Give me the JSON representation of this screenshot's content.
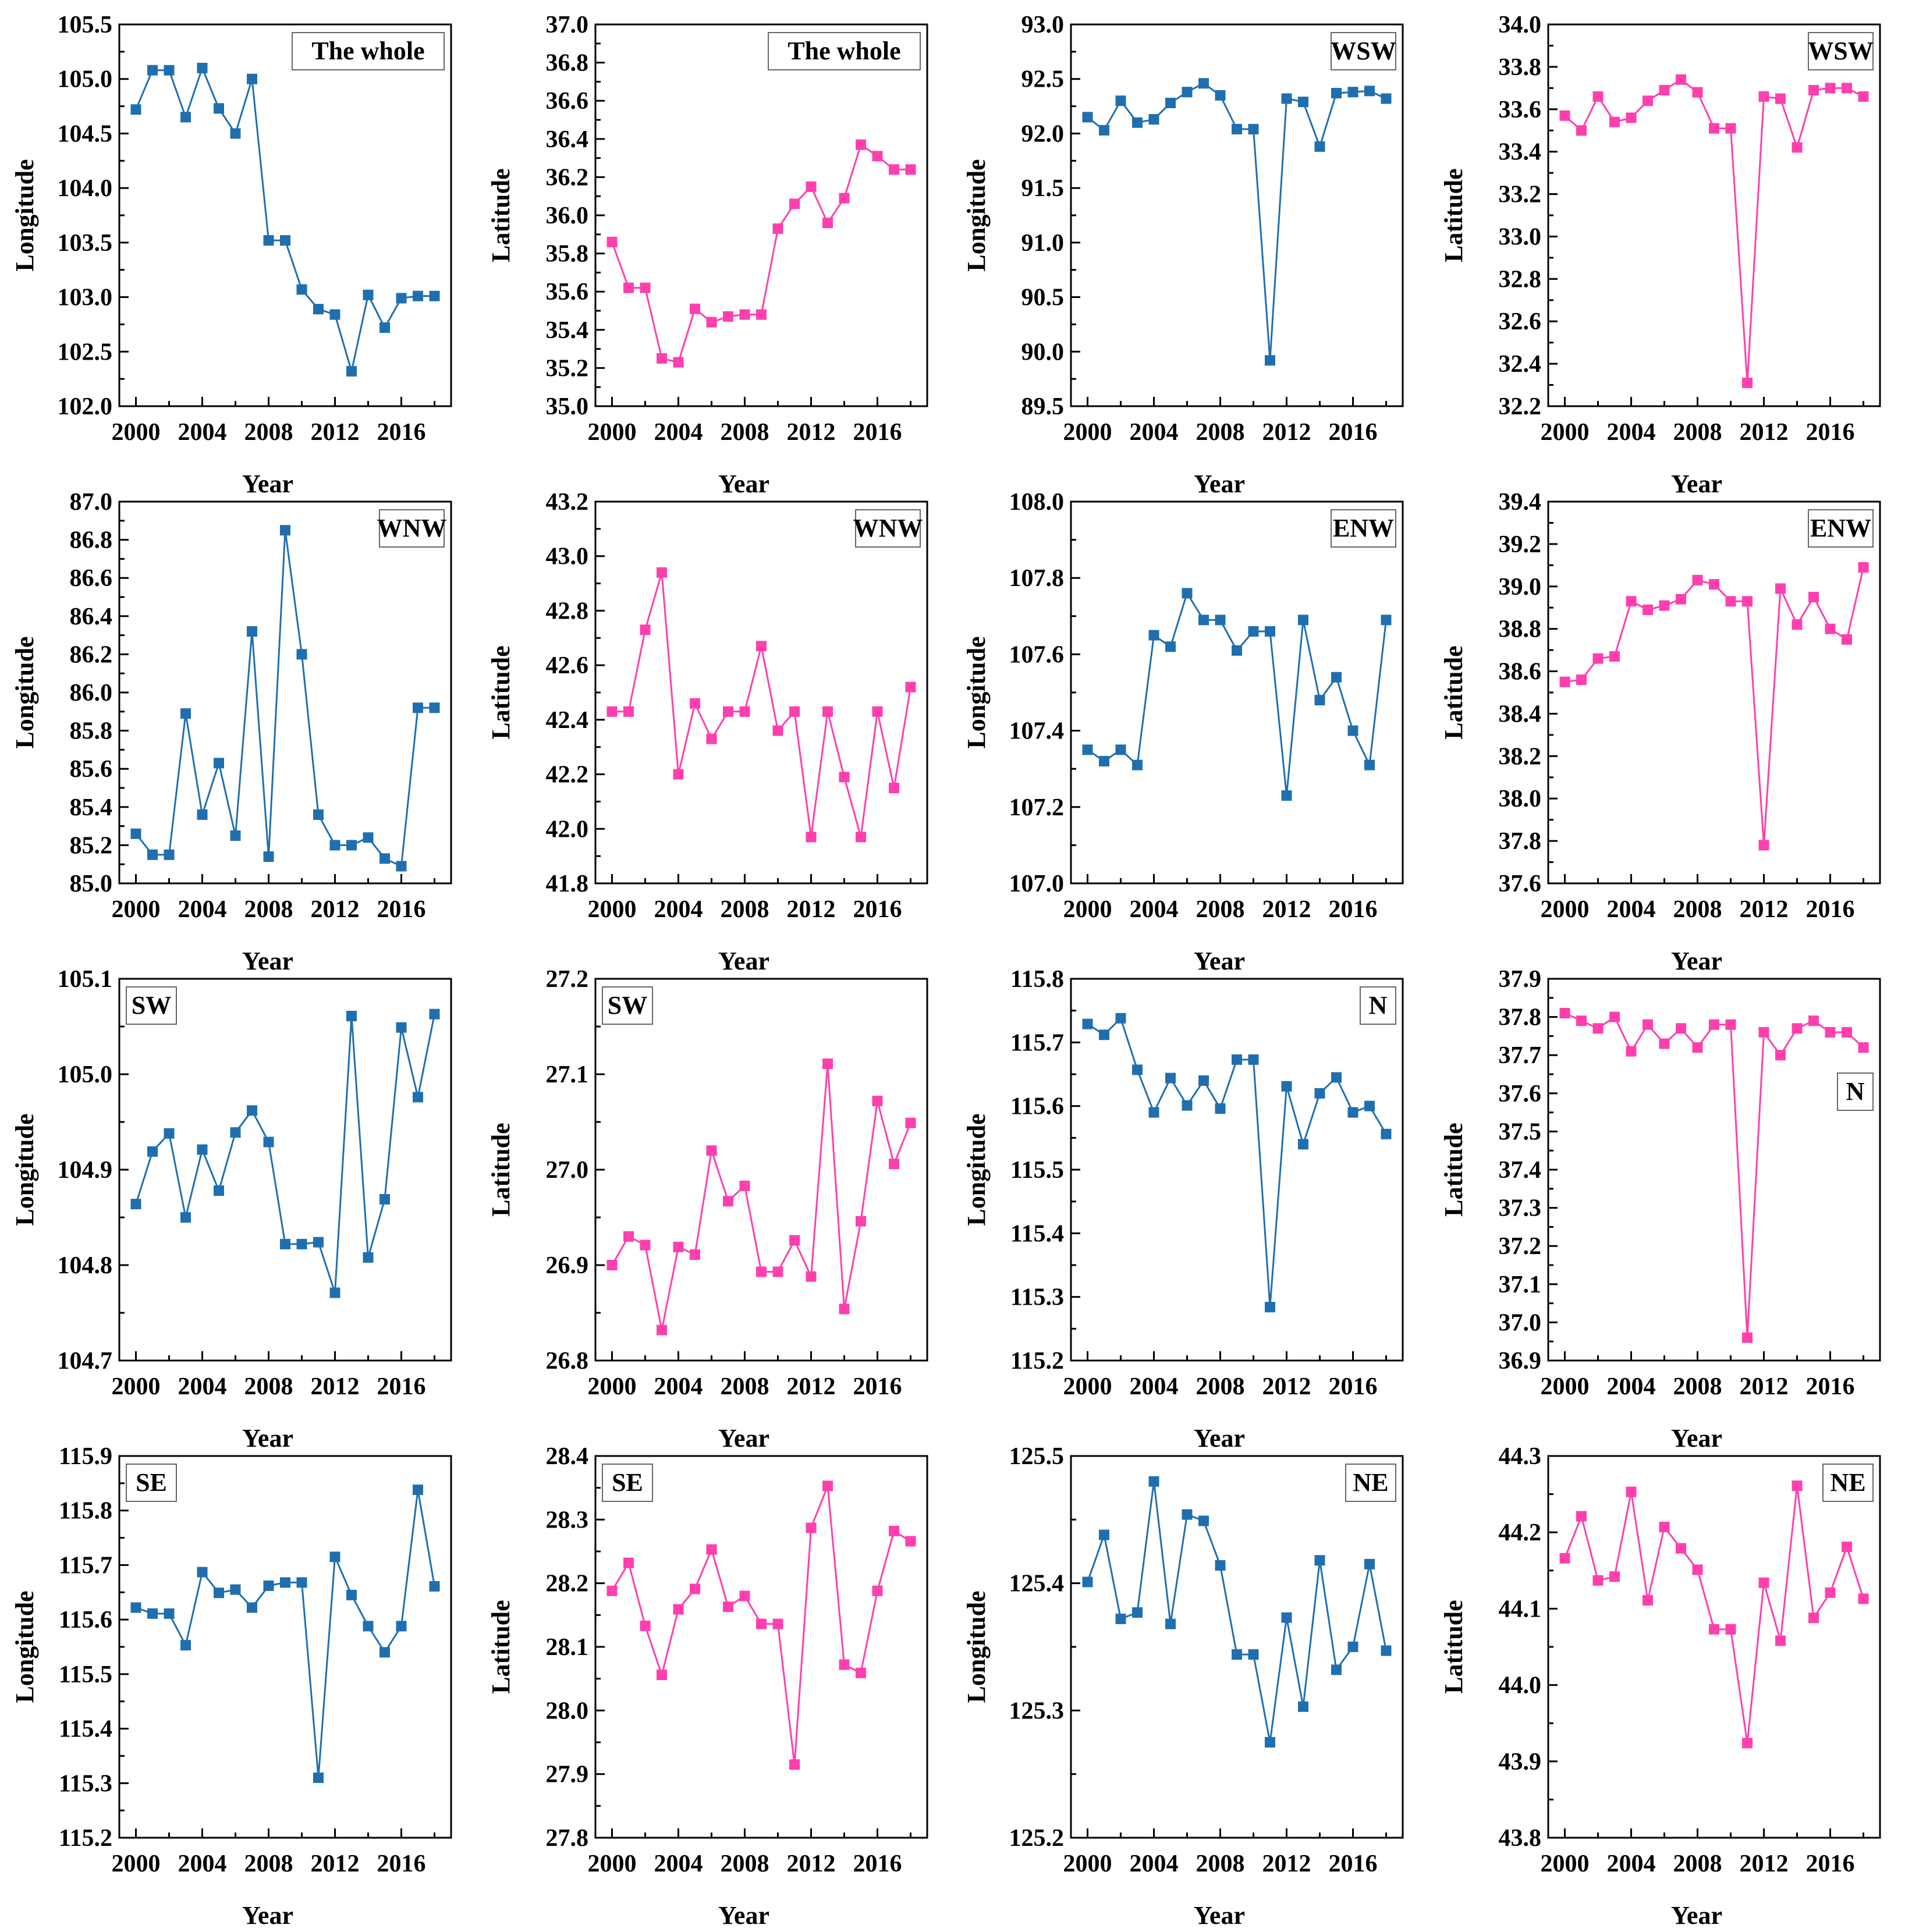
{
  "colors": {
    "longitude": "#1f6fb0",
    "latitude": "#ff3fae"
  },
  "years": [
    2000,
    2001,
    2002,
    2003,
    2004,
    2005,
    2006,
    2007,
    2008,
    2009,
    2010,
    2011,
    2012,
    2013,
    2014,
    2015,
    2016,
    2017,
    2018
  ],
  "chart_data": [
    {
      "type": "line",
      "title": "The whole",
      "region": "The whole",
      "xlabel": "Year",
      "ylabel": "Longitude",
      "color": "longitude",
      "xlim": [
        1999,
        2019
      ],
      "x_ticks": [
        2000,
        2004,
        2008,
        2012,
        2016
      ],
      "x_tick_labels": [
        "2000",
        "2004",
        "2008",
        "2012",
        "2016"
      ],
      "ylim": [
        102.0,
        105.5
      ],
      "y_ticks": [
        102.0,
        102.5,
        103.0,
        103.5,
        104.0,
        104.5,
        105.0,
        105.5
      ],
      "y_tick_labels": [
        "102.0",
        "102.5",
        "103.0",
        "103.5",
        "104.0",
        "104.5",
        "105.0",
        "105.5"
      ],
      "values": [
        104.72,
        105.08,
        105.08,
        104.65,
        105.1,
        104.73,
        104.5,
        105.0,
        103.52,
        103.52,
        103.07,
        102.89,
        102.84,
        102.32,
        103.02,
        102.72,
        102.99,
        103.01,
        103.01
      ],
      "legend_position": "top-right"
    },
    {
      "type": "line",
      "title": "The whole",
      "region": "The whole",
      "xlabel": "Year",
      "ylabel": "Latitude",
      "color": "latitude",
      "xlim": [
        1999,
        2019
      ],
      "x_ticks": [
        2000,
        2004,
        2008,
        2012,
        2016
      ],
      "x_tick_labels": [
        "2000",
        "2004",
        "2008",
        "2012",
        "2016"
      ],
      "ylim": [
        35.0,
        37.0
      ],
      "y_ticks": [
        35.0,
        35.2,
        35.4,
        35.6,
        35.8,
        36.0,
        36.2,
        36.4,
        36.6,
        36.8,
        37.0
      ],
      "y_tick_labels": [
        "35.0",
        "35.2",
        "35.4",
        "35.6",
        "35.8",
        "36.0",
        "36.2",
        "36.4",
        "36.6",
        "36.8",
        "37.0"
      ],
      "values": [
        35.86,
        35.62,
        35.62,
        35.25,
        35.23,
        35.51,
        35.44,
        35.47,
        35.48,
        35.48,
        35.93,
        36.06,
        36.15,
        35.96,
        36.09,
        36.37,
        36.31,
        36.24,
        36.24
      ],
      "legend_position": "top-right"
    },
    {
      "type": "line",
      "title": "WSW",
      "region": "WSW",
      "xlabel": "Year",
      "ylabel": "Longitude",
      "color": "longitude",
      "xlim": [
        1999,
        2019
      ],
      "x_ticks": [
        2000,
        2004,
        2008,
        2012,
        2016
      ],
      "x_tick_labels": [
        "2000",
        "2004",
        "2008",
        "2012",
        "2016"
      ],
      "ylim": [
        89.5,
        93.0
      ],
      "y_ticks": [
        89.5,
        90.0,
        90.5,
        91.0,
        91.5,
        92.0,
        92.5,
        93.0
      ],
      "y_tick_labels": [
        "89.5",
        "90.0",
        "90.5",
        "91.0",
        "91.5",
        "92.0",
        "92.5",
        "93.0"
      ],
      "values": [
        92.15,
        92.03,
        92.3,
        92.1,
        92.13,
        92.28,
        92.38,
        92.46,
        92.35,
        92.04,
        92.04,
        89.92,
        92.32,
        92.29,
        91.88,
        92.37,
        92.38,
        92.39,
        92.32
      ],
      "legend_position": "top-right"
    },
    {
      "type": "line",
      "title": "WSW",
      "region": "WSW",
      "xlabel": "Year",
      "ylabel": "Latitude",
      "color": "latitude",
      "xlim": [
        1999,
        2019
      ],
      "x_ticks": [
        2000,
        2004,
        2008,
        2012,
        2016
      ],
      "x_tick_labels": [
        "2000",
        "2004",
        "2008",
        "2012",
        "2016"
      ],
      "ylim": [
        32.2,
        34.0
      ],
      "y_ticks": [
        32.2,
        32.4,
        32.6,
        32.8,
        33.0,
        33.2,
        33.4,
        33.6,
        33.8,
        34.0
      ],
      "y_tick_labels": [
        "32.2",
        "32.4",
        "32.6",
        "32.8",
        "33.0",
        "33.2",
        "33.4",
        "33.6",
        "33.8",
        "34.0"
      ],
      "values": [
        33.57,
        33.5,
        33.66,
        33.54,
        33.56,
        33.64,
        33.69,
        33.74,
        33.68,
        33.51,
        33.51,
        32.31,
        33.66,
        33.65,
        33.42,
        33.69,
        33.7,
        33.7,
        33.66
      ],
      "legend_position": "top-right"
    },
    {
      "type": "line",
      "title": "WNW",
      "region": "WNW",
      "xlabel": "Year",
      "ylabel": "Longitude",
      "color": "longitude",
      "xlim": [
        1999,
        2019
      ],
      "x_ticks": [
        2000,
        2004,
        2008,
        2012,
        2016
      ],
      "x_tick_labels": [
        "2000",
        "2004",
        "2008",
        "2012",
        "2016"
      ],
      "ylim": [
        85.0,
        87.0
      ],
      "y_ticks": [
        85.0,
        85.2,
        85.4,
        85.6,
        85.8,
        86.0,
        86.2,
        86.4,
        86.6,
        86.8,
        87.0
      ],
      "y_tick_labels": [
        "85.0",
        "85.2",
        "85.4",
        "85.6",
        "85.8",
        "86.0",
        "86.2",
        "86.4",
        "86.6",
        "86.8",
        "87.0"
      ],
      "values": [
        85.26,
        85.15,
        85.15,
        85.89,
        85.36,
        85.63,
        85.25,
        86.32,
        85.14,
        86.85,
        86.2,
        85.36,
        85.2,
        85.2,
        85.24,
        85.13,
        85.09,
        85.92,
        85.92
      ],
      "legend_position": "top-right"
    },
    {
      "type": "line",
      "title": "WNW",
      "region": "WNW",
      "xlabel": "Year",
      "ylabel": "Latitude",
      "color": "latitude",
      "xlim": [
        1999,
        2019
      ],
      "x_ticks": [
        2000,
        2004,
        2008,
        2012,
        2016
      ],
      "x_tick_labels": [
        "2000",
        "2004",
        "2008",
        "2012",
        "2016"
      ],
      "ylim": [
        41.8,
        43.2
      ],
      "y_ticks": [
        41.8,
        42.0,
        42.2,
        42.4,
        42.6,
        42.8,
        43.0,
        43.2
      ],
      "y_tick_labels": [
        "41.8",
        "42.0",
        "42.2",
        "42.4",
        "42.6",
        "42.8",
        "43.0",
        "43.2"
      ],
      "values": [
        42.43,
        42.43,
        42.73,
        42.94,
        42.2,
        42.46,
        42.33,
        42.43,
        42.43,
        42.67,
        42.36,
        42.43,
        41.97,
        42.43,
        42.19,
        41.97,
        42.43,
        42.15,
        42.52
      ],
      "legend_position": "top-right"
    },
    {
      "type": "line",
      "title": "ENW",
      "region": "ENW",
      "xlabel": "Year",
      "ylabel": "Longitude",
      "color": "longitude",
      "xlim": [
        1999,
        2019
      ],
      "x_ticks": [
        2000,
        2004,
        2008,
        2012,
        2016
      ],
      "x_tick_labels": [
        "2000",
        "2004",
        "2008",
        "2012",
        "2016"
      ],
      "ylim": [
        107.0,
        108.0
      ],
      "y_ticks": [
        107.0,
        107.2,
        107.4,
        107.6,
        107.8,
        108.0
      ],
      "y_tick_labels": [
        "107.0",
        "107.2",
        "107.4",
        "107.6",
        "107.8",
        "108.0"
      ],
      "values": [
        107.35,
        107.32,
        107.35,
        107.31,
        107.65,
        107.62,
        107.76,
        107.69,
        107.69,
        107.61,
        107.66,
        107.66,
        107.23,
        107.69,
        107.48,
        107.54,
        107.4,
        107.31,
        107.69
      ],
      "legend_position": "top-right"
    },
    {
      "type": "line",
      "title": "ENW",
      "region": "ENW",
      "xlabel": "Year",
      "ylabel": "Latitude",
      "color": "latitude",
      "xlim": [
        1999,
        2019
      ],
      "x_ticks": [
        2000,
        2004,
        2008,
        2012,
        2016
      ],
      "x_tick_labels": [
        "2000",
        "2004",
        "2008",
        "2012",
        "2016"
      ],
      "ylim": [
        37.6,
        39.4
      ],
      "y_ticks": [
        37.6,
        37.8,
        38.0,
        38.2,
        38.4,
        38.6,
        38.8,
        39.0,
        39.2,
        39.4
      ],
      "y_tick_labels": [
        "37.6",
        "37.8",
        "38.0",
        "38.2",
        "38.4",
        "38.6",
        "38.8",
        "39.0",
        "39.2",
        "39.4"
      ],
      "values": [
        38.55,
        38.56,
        38.66,
        38.67,
        38.93,
        38.89,
        38.91,
        38.94,
        39.03,
        39.01,
        38.93,
        38.93,
        37.78,
        38.99,
        38.82,
        38.95,
        38.8,
        38.75,
        39.09
      ],
      "legend_position": "top-right"
    },
    {
      "type": "line",
      "title": "SW",
      "region": "SW",
      "xlabel": "Year",
      "ylabel": "Longitude",
      "color": "longitude",
      "xlim": [
        1999,
        2019
      ],
      "x_ticks": [
        2000,
        2004,
        2008,
        2012,
        2016
      ],
      "x_tick_labels": [
        "2000",
        "2004",
        "2008",
        "2012",
        "2016"
      ],
      "ylim": [
        104.7,
        105.1
      ],
      "y_ticks": [
        104.7,
        104.8,
        104.9,
        105.0,
        105.1
      ],
      "y_tick_labels": [
        "104.7",
        "104.8",
        "104.9",
        "105.0",
        "105.1"
      ],
      "values": [
        104.864,
        104.919,
        104.938,
        104.85,
        104.921,
        104.878,
        104.939,
        104.962,
        104.929,
        104.822,
        104.822,
        104.824,
        104.771,
        105.061,
        104.808,
        104.869,
        105.049,
        104.976,
        105.063
      ],
      "legend_position": "top-left"
    },
    {
      "type": "line",
      "title": "SW",
      "region": "SW",
      "xlabel": "Year",
      "ylabel": "Latitude",
      "color": "latitude",
      "xlim": [
        1999,
        2019
      ],
      "x_ticks": [
        2000,
        2004,
        2008,
        2012,
        2016
      ],
      "x_tick_labels": [
        "2000",
        "2004",
        "2008",
        "2012",
        "2016"
      ],
      "ylim": [
        26.8,
        27.2
      ],
      "y_ticks": [
        26.8,
        26.9,
        27.0,
        27.1,
        27.2
      ],
      "y_tick_labels": [
        "26.8",
        "26.9",
        "27.0",
        "27.1",
        "27.2"
      ],
      "values": [
        26.9,
        26.93,
        26.921,
        26.832,
        26.919,
        26.911,
        27.02,
        26.967,
        26.983,
        26.893,
        26.893,
        26.926,
        26.888,
        27.111,
        26.854,
        26.946,
        27.072,
        27.006,
        27.049
      ],
      "legend_position": "top-left"
    },
    {
      "type": "line",
      "title": "N",
      "region": "N",
      "xlabel": "Year",
      "ylabel": "Longitude",
      "color": "longitude",
      "xlim": [
        1999,
        2019
      ],
      "x_ticks": [
        2000,
        2004,
        2008,
        2012,
        2016
      ],
      "x_tick_labels": [
        "2000",
        "2004",
        "2008",
        "2012",
        "2016"
      ],
      "ylim": [
        115.2,
        115.8
      ],
      "y_ticks": [
        115.2,
        115.3,
        115.4,
        115.5,
        115.6,
        115.7,
        115.8
      ],
      "y_tick_labels": [
        "115.2",
        "115.3",
        "115.4",
        "115.5",
        "115.6",
        "115.7",
        "115.8"
      ],
      "values": [
        115.729,
        115.712,
        115.738,
        115.657,
        115.59,
        115.644,
        115.601,
        115.64,
        115.596,
        115.673,
        115.673,
        115.284,
        115.631,
        115.54,
        115.62,
        115.645,
        115.59,
        115.6,
        115.556
      ],
      "legend_position": "top-right"
    },
    {
      "type": "line",
      "title": "N",
      "region": "N",
      "xlabel": "Year",
      "ylabel": "Latitude",
      "color": "latitude",
      "xlim": [
        1999,
        2019
      ],
      "x_ticks": [
        2000,
        2004,
        2008,
        2012,
        2016
      ],
      "x_tick_labels": [
        "2000",
        "2004",
        "2008",
        "2012",
        "2016"
      ],
      "ylim": [
        36.9,
        37.9
      ],
      "y_ticks": [
        36.9,
        37.0,
        37.1,
        37.2,
        37.3,
        37.4,
        37.5,
        37.6,
        37.7,
        37.8,
        37.9
      ],
      "y_tick_labels": [
        "36.9",
        "37.0",
        "37.1",
        "37.2",
        "37.3",
        "37.4",
        "37.5",
        "37.6",
        "37.7",
        "37.8",
        "37.9"
      ],
      "values": [
        37.81,
        37.79,
        37.77,
        37.8,
        37.71,
        37.78,
        37.73,
        37.77,
        37.72,
        37.78,
        37.78,
        36.96,
        37.76,
        37.7,
        37.77,
        37.79,
        37.76,
        37.76,
        37.72
      ],
      "legend_position": "right"
    },
    {
      "type": "line",
      "title": "SE",
      "region": "SE",
      "xlabel": "Year",
      "ylabel": "Longitude",
      "color": "longitude",
      "xlim": [
        1999,
        2019
      ],
      "x_ticks": [
        2000,
        2004,
        2008,
        2012,
        2016
      ],
      "x_tick_labels": [
        "2000",
        "2004",
        "2008",
        "2012",
        "2016"
      ],
      "ylim": [
        115.2,
        115.9
      ],
      "y_ticks": [
        115.2,
        115.3,
        115.4,
        115.5,
        115.6,
        115.7,
        115.8,
        115.9
      ],
      "y_tick_labels": [
        "115.2",
        "115.3",
        "115.4",
        "115.5",
        "115.6",
        "115.7",
        "115.8",
        "115.9"
      ],
      "values": [
        115.622,
        115.611,
        115.611,
        115.553,
        115.687,
        115.649,
        115.655,
        115.622,
        115.662,
        115.668,
        115.668,
        115.31,
        115.715,
        115.645,
        115.588,
        115.54,
        115.588,
        115.838,
        115.661
      ],
      "legend_position": "top-left"
    },
    {
      "type": "line",
      "title": "SE",
      "region": "SE",
      "xlabel": "Year",
      "ylabel": "Latitude",
      "color": "latitude",
      "xlim": [
        1999,
        2019
      ],
      "x_ticks": [
        2000,
        2004,
        2008,
        2012,
        2016
      ],
      "x_tick_labels": [
        "2000",
        "2004",
        "2008",
        "2012",
        "2016"
      ],
      "ylim": [
        27.8,
        28.4
      ],
      "y_ticks": [
        27.8,
        27.9,
        28.0,
        28.1,
        28.2,
        28.3,
        28.4
      ],
      "y_tick_labels": [
        "27.8",
        "27.9",
        "28.0",
        "28.1",
        "28.2",
        "28.3",
        "28.4"
      ],
      "values": [
        28.188,
        28.232,
        28.133,
        28.056,
        28.159,
        28.191,
        28.253,
        28.163,
        28.18,
        28.136,
        28.136,
        27.915,
        28.287,
        28.353,
        28.072,
        28.059,
        28.188,
        28.282,
        28.266
      ],
      "legend_position": "top-left"
    },
    {
      "type": "line",
      "title": "NE",
      "region": "NE",
      "xlabel": "Year",
      "ylabel": "Longitude",
      "color": "longitude",
      "xlim": [
        1999,
        2019
      ],
      "x_ticks": [
        2000,
        2004,
        2008,
        2012,
        2016
      ],
      "x_tick_labels": [
        "2000",
        "2004",
        "2008",
        "2012",
        "2016"
      ],
      "ylim": [
        125.2,
        125.5
      ],
      "y_ticks": [
        125.2,
        125.3,
        125.4,
        125.5
      ],
      "y_tick_labels": [
        "125.2",
        "125.3",
        "125.4",
        "125.5"
      ],
      "values": [
        125.401,
        125.438,
        125.372,
        125.377,
        125.48,
        125.368,
        125.454,
        125.449,
        125.414,
        125.344,
        125.344,
        125.275,
        125.373,
        125.303,
        125.418,
        125.332,
        125.35,
        125.415,
        125.347
      ],
      "legend_position": "top-right"
    },
    {
      "type": "line",
      "title": "NE",
      "region": "NE",
      "xlabel": "Year",
      "ylabel": "Latitude",
      "color": "latitude",
      "xlim": [
        1999,
        2019
      ],
      "x_ticks": [
        2000,
        2004,
        2008,
        2012,
        2016
      ],
      "x_tick_labels": [
        "2000",
        "2004",
        "2008",
        "2012",
        "2016"
      ],
      "ylim": [
        43.8,
        44.3
      ],
      "y_ticks": [
        43.8,
        43.9,
        44.0,
        44.1,
        44.2,
        44.3
      ],
      "y_tick_labels": [
        "43.8",
        "43.9",
        "44.0",
        "44.1",
        "44.2",
        "44.3"
      ],
      "values": [
        44.166,
        44.221,
        44.137,
        44.142,
        44.253,
        44.111,
        44.207,
        44.179,
        44.151,
        44.073,
        44.073,
        43.924,
        44.134,
        44.058,
        44.261,
        44.088,
        44.121,
        44.181,
        44.113
      ],
      "legend_position": "top-right"
    }
  ]
}
